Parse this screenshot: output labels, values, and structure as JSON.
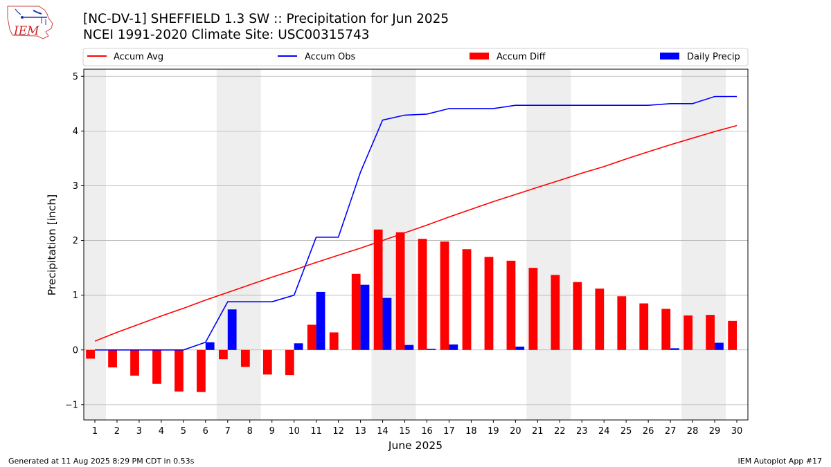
{
  "header": {
    "title_line1": "[NC-DV-1] SHEFFIELD 1.3 SW :: Precipitation for Jun 2025",
    "title_line2": "NCEI 1991-2020 Climate Site: USC00315743",
    "logo_text": "IEM"
  },
  "footer": {
    "generated": "Generated at 11 Aug 2025 8:29 PM CDT in 0.53s",
    "app": "IEM Autoplot App #17"
  },
  "chart_data": {
    "type": "bar",
    "xlabel": "June 2025",
    "ylabel": "Precipitation [inch]",
    "ylim": [
      -1.28,
      5.13
    ],
    "xlim": [
      0.5,
      30.5
    ],
    "yticks": [
      -1,
      0,
      1,
      2,
      3,
      4,
      5
    ],
    "ytick_labels": [
      "−1",
      "0",
      "1",
      "2",
      "3",
      "4",
      "5"
    ],
    "xticks": [
      1,
      2,
      3,
      4,
      5,
      6,
      7,
      8,
      9,
      10,
      11,
      12,
      13,
      14,
      15,
      16,
      17,
      18,
      19,
      20,
      21,
      22,
      23,
      24,
      25,
      26,
      27,
      28,
      29,
      30
    ],
    "grid": "horizontal",
    "weekend_shading": [
      [
        0.5,
        1.5
      ],
      [
        6.5,
        8.5
      ],
      [
        13.5,
        15.5
      ],
      [
        20.5,
        22.5
      ],
      [
        27.5,
        29.5
      ]
    ],
    "legend_position": "top",
    "colors": {
      "avg": "#ff0000",
      "obs": "#0000ff",
      "diff": "#ff0000",
      "daily": "#0000ff",
      "shade": "#eeeeee",
      "grid": "#b0b0b0"
    },
    "series": [
      {
        "name": "Accum Avg",
        "kind": "line",
        "color": "#ff0000",
        "values": [
          0.16,
          0.32,
          0.47,
          0.62,
          0.76,
          0.91,
          1.05,
          1.19,
          1.33,
          1.46,
          1.6,
          1.73,
          1.86,
          2.0,
          2.14,
          2.28,
          2.43,
          2.57,
          2.71,
          2.84,
          2.97,
          3.1,
          3.23,
          3.35,
          3.49,
          3.62,
          3.75,
          3.87,
          3.99,
          4.1
        ]
      },
      {
        "name": "Accum Obs",
        "kind": "line",
        "color": "#0000ff",
        "values": [
          0.0,
          0.0,
          0.0,
          0.0,
          0.0,
          0.14,
          0.88,
          0.88,
          0.88,
          1.0,
          2.06,
          2.06,
          3.25,
          4.2,
          4.29,
          4.31,
          4.41,
          4.41,
          4.41,
          4.47,
          4.47,
          4.47,
          4.47,
          4.47,
          4.47,
          4.47,
          4.5,
          4.5,
          4.63,
          4.63
        ]
      },
      {
        "name": "Accum Diff",
        "kind": "bar",
        "color": "#ff0000",
        "values": [
          -0.16,
          -0.32,
          -0.47,
          -0.62,
          -0.76,
          -0.77,
          -0.17,
          -0.31,
          -0.45,
          -0.46,
          0.46,
          0.32,
          1.39,
          2.2,
          2.15,
          2.03,
          1.98,
          1.84,
          1.7,
          1.63,
          1.5,
          1.37,
          1.24,
          1.12,
          0.98,
          0.85,
          0.75,
          0.63,
          0.64,
          0.53
        ]
      },
      {
        "name": "Daily Precip",
        "kind": "bar",
        "color": "#0000ff",
        "values": [
          0.0,
          0.0,
          0.0,
          0.0,
          0.0,
          0.14,
          0.74,
          0.0,
          0.0,
          0.12,
          1.06,
          0.0,
          1.19,
          0.95,
          0.09,
          0.02,
          0.1,
          0.0,
          0.0,
          0.06,
          0.0,
          0.0,
          0.0,
          0.0,
          0.0,
          0.0,
          0.03,
          0.0,
          0.13,
          0.0
        ]
      }
    ]
  }
}
